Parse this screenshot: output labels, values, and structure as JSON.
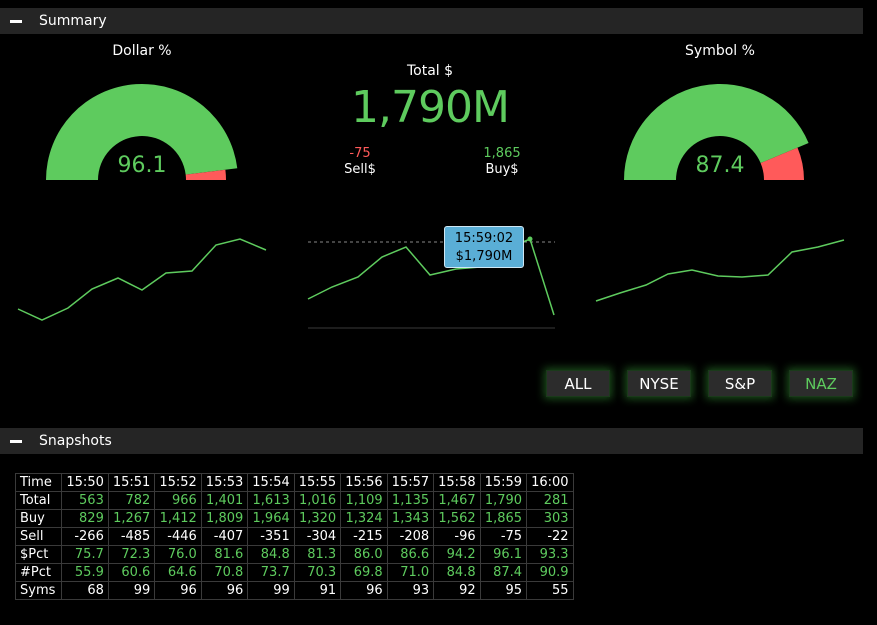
{
  "summary": {
    "title": "Summary"
  },
  "snapshots_section": {
    "title": "Snapshots"
  },
  "dollar_gauge": {
    "title": "Dollar %",
    "value": "96.1",
    "pct": 96.1
  },
  "symbol_gauge": {
    "title": "Symbol %",
    "value": "87.4",
    "pct": 87.4
  },
  "total": {
    "label": "Total $",
    "value": "1,790M"
  },
  "sell": {
    "value": "-75",
    "label": "Sell$"
  },
  "buy": {
    "value": "1,865",
    "label": "Buy$"
  },
  "tooltip": {
    "time": "15:59:02",
    "value": "$1,790M"
  },
  "filters": [
    "ALL",
    "NYSE",
    "S&P",
    "NAZ"
  ],
  "active_filter": "NAZ",
  "colors": {
    "green": "#5ecb5e",
    "red": "#ff5a5a",
    "tooltip": "#5aaed6"
  },
  "table": {
    "headers": [
      "Time",
      "15:50",
      "15:51",
      "15:52",
      "15:53",
      "15:54",
      "15:55",
      "15:56",
      "15:57",
      "15:58",
      "15:59",
      "16:00"
    ],
    "rows": [
      {
        "label": "Total",
        "color": "green",
        "values": [
          "563",
          "782",
          "966",
          "1,401",
          "1,613",
          "1,016",
          "1,109",
          "1,135",
          "1,467",
          "1,790",
          "281"
        ]
      },
      {
        "label": "Buy",
        "color": "green",
        "values": [
          "829",
          "1,267",
          "1,412",
          "1,809",
          "1,964",
          "1,320",
          "1,324",
          "1,343",
          "1,562",
          "1,865",
          "303"
        ]
      },
      {
        "label": "Sell",
        "color": "white",
        "values": [
          "-266",
          "-485",
          "-446",
          "-407",
          "-351",
          "-304",
          "-215",
          "-208",
          "-96",
          "-75",
          "-22"
        ]
      },
      {
        "label": "$Pct",
        "color": "green",
        "values": [
          "75.7",
          "72.3",
          "76.0",
          "81.6",
          "84.8",
          "81.3",
          "86.0",
          "86.6",
          "94.2",
          "96.1",
          "93.3"
        ]
      },
      {
        "label": "#Pct",
        "color": "green",
        "values": [
          "55.9",
          "60.6",
          "64.6",
          "70.8",
          "73.7",
          "70.3",
          "69.8",
          "71.0",
          "84.8",
          "87.4",
          "90.9"
        ]
      },
      {
        "label": "Syms",
        "color": "white",
        "values": [
          "68",
          "99",
          "96",
          "96",
          "99",
          "91",
          "96",
          "93",
          "92",
          "95",
          "55"
        ]
      }
    ]
  }
}
